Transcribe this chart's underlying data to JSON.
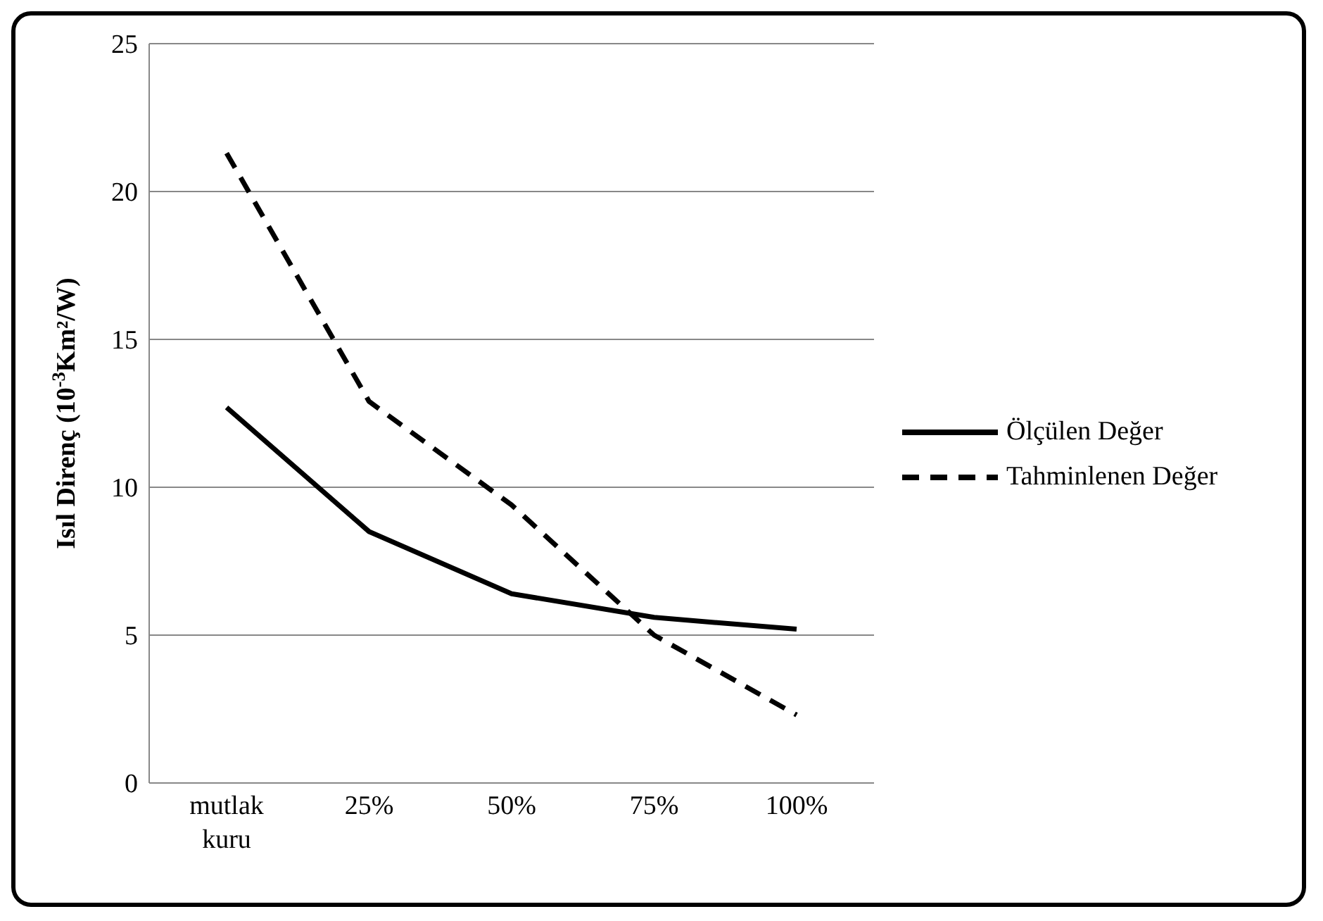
{
  "chart_data": {
    "type": "line",
    "ylabel": "Isıl Direnç (10$^{-3}$Km²/W)",
    "categories": [
      "mutlak kuru",
      "25%",
      "50%",
      "75%",
      "100%"
    ],
    "series": [
      {
        "name": "Ölçülen Değer",
        "color": "#000000",
        "line_style": "solid",
        "values": [
          12.7,
          8.5,
          6.4,
          5.6,
          5.2
        ]
      },
      {
        "name": "Tahminlenen Değer",
        "color": "#000000",
        "line_style": "dashed",
        "values": [
          21.3,
          12.9,
          9.4,
          5.0,
          2.3
        ]
      }
    ],
    "ylim": [
      0,
      25
    ],
    "yticks": [
      0,
      5,
      10,
      15,
      20,
      25
    ],
    "grid": "y",
    "legend": "right",
    "marker": "none"
  }
}
